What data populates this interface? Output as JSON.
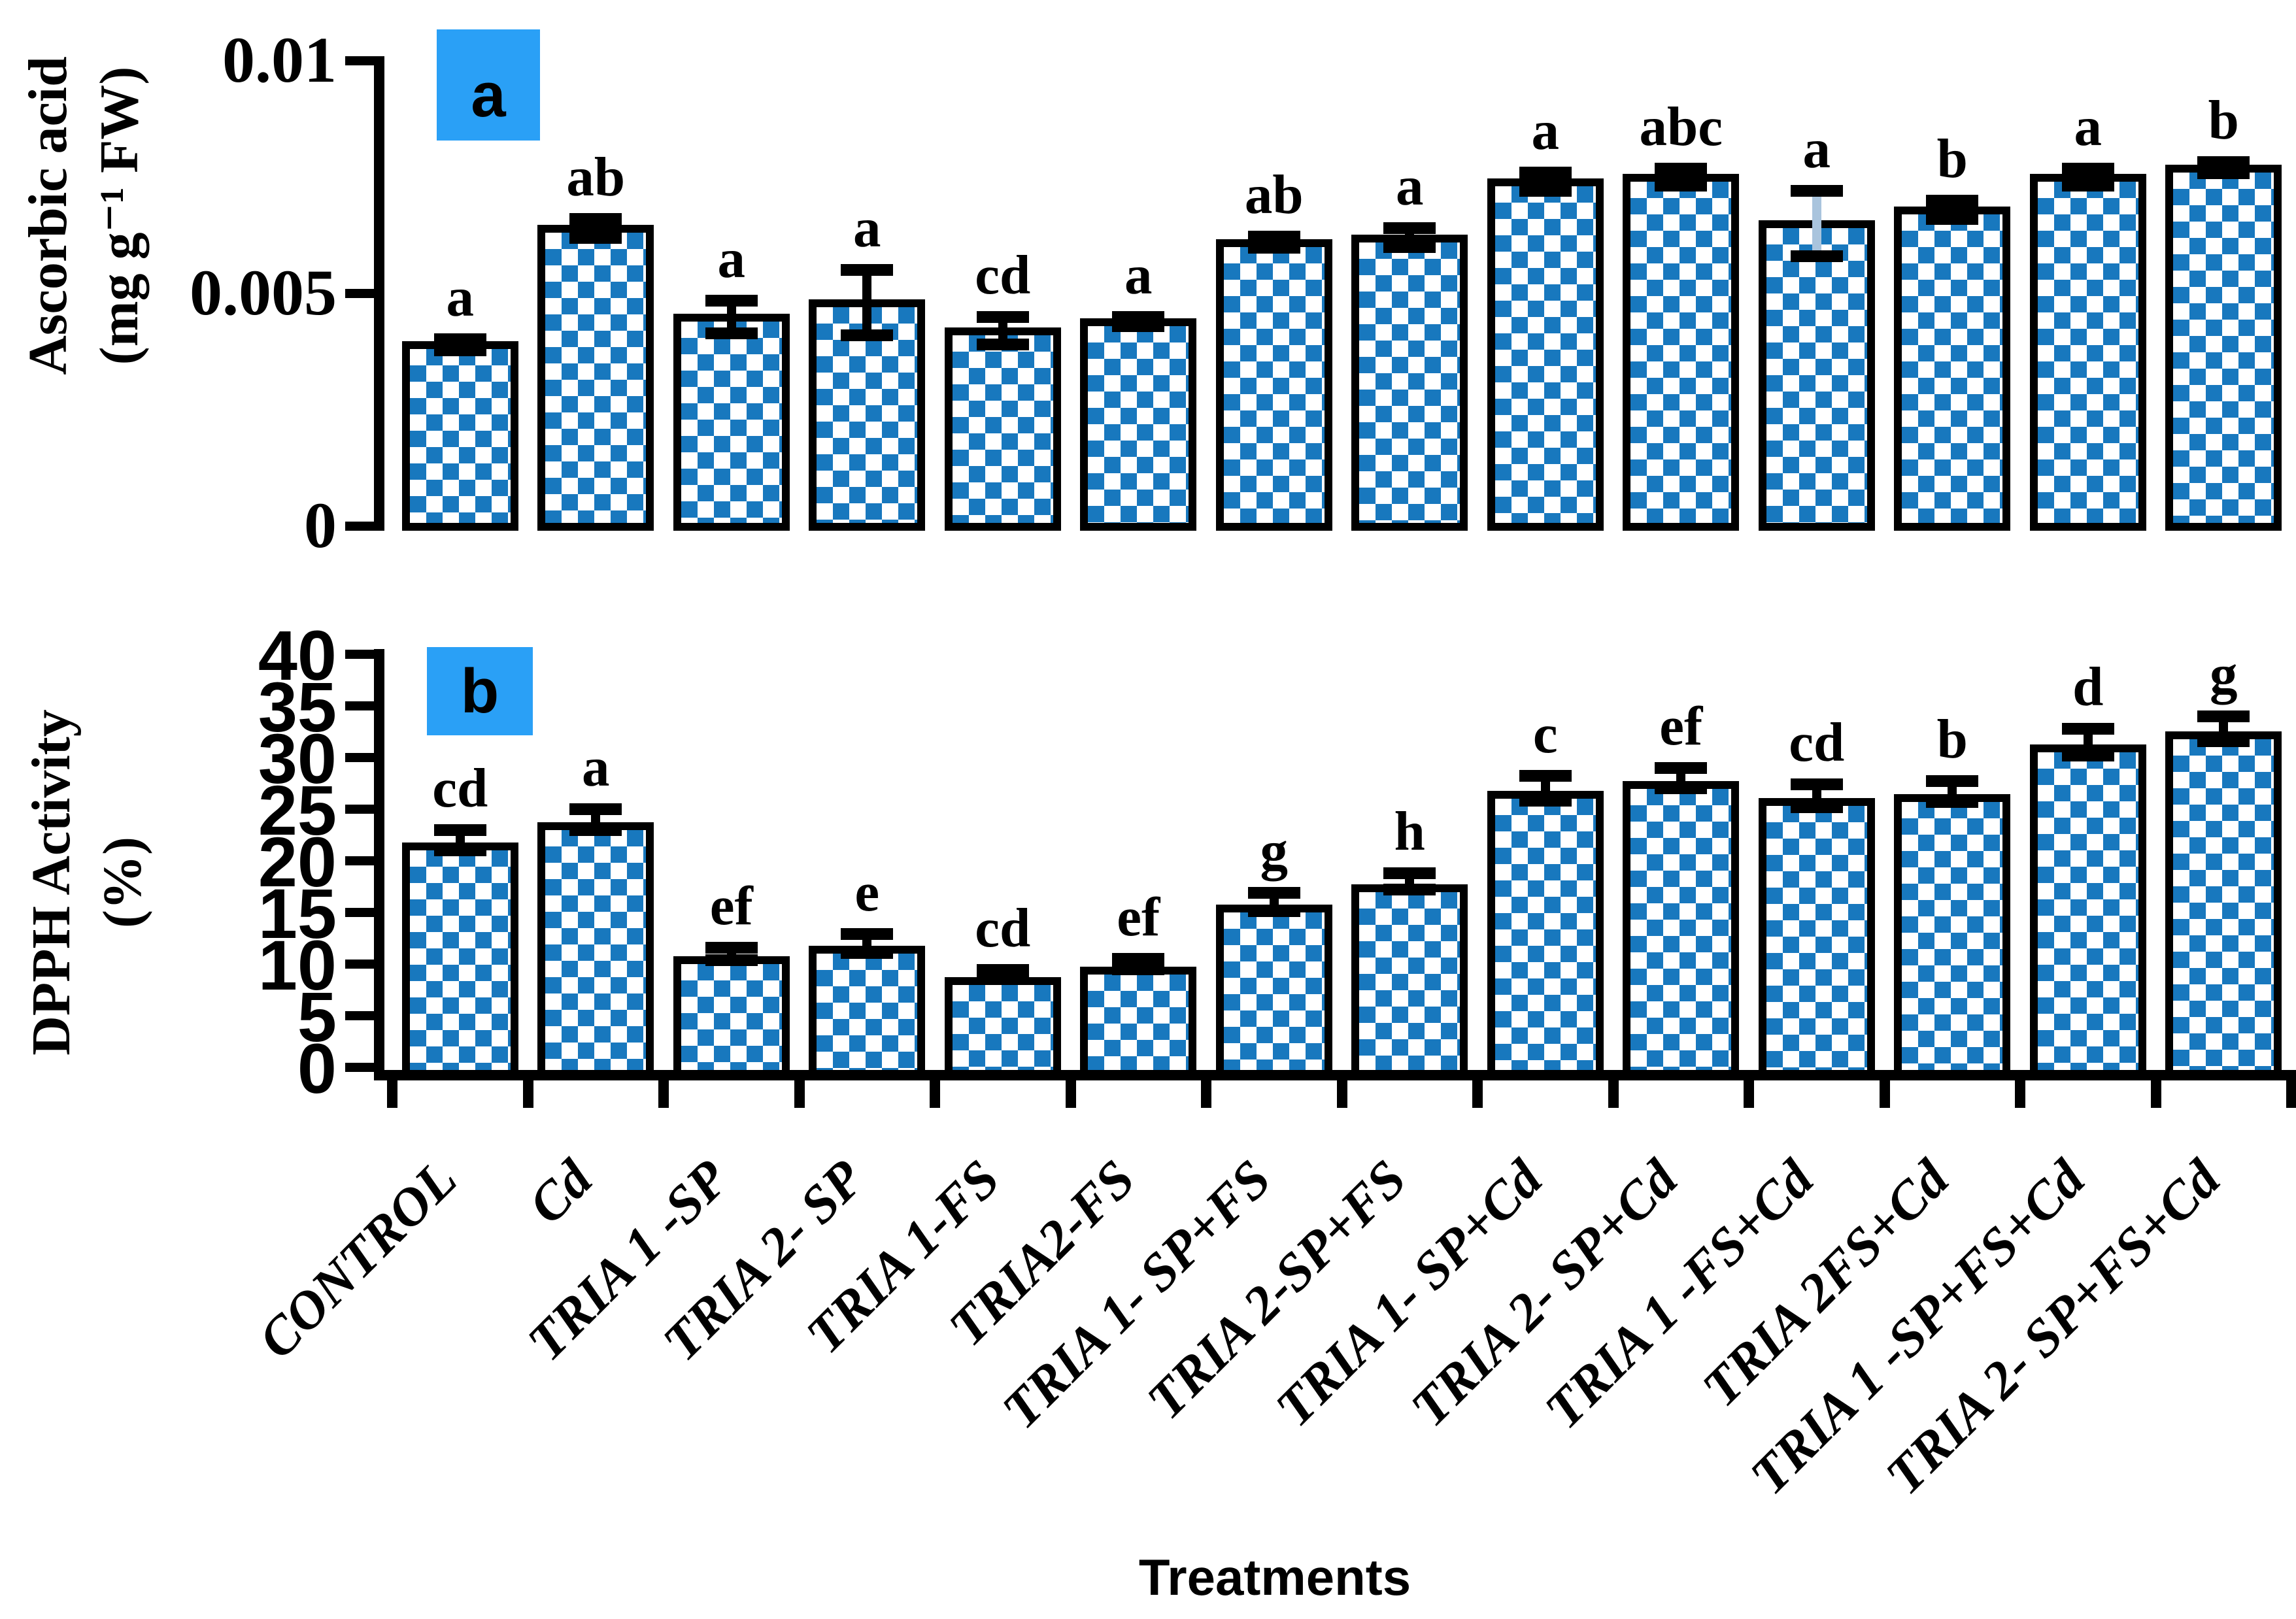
{
  "figure": {
    "xlabel": "Treatments",
    "colors": {
      "bar_fill_blue": "#1878be",
      "bar_border_black": "#000000",
      "legend_box_blue": "#2aa0f6",
      "light_error_line": "#a9c4dd"
    }
  },
  "chart_data": [
    {
      "type": "bar",
      "panel": "a",
      "title": "",
      "ylabel": "Ascorbic acid (mg g⁻¹ FW)",
      "ylabel_lines": [
        "Ascorbic acid",
        "(mg g⁻¹ FW)"
      ],
      "xlabel": "Treatments",
      "ylim": [
        0,
        0.01
      ],
      "yticks": [
        0,
        0.005,
        0.01
      ],
      "ytick_labels": [
        "0",
        "0.005",
        "0.01"
      ],
      "grid": false,
      "legend_position": "top-left-inside",
      "categories": [
        "CONTROL",
        "Cd",
        "TRIA 1 -SP",
        "TRIA 2- SP",
        "TRIA 1-FS",
        "TRIA2-FS",
        "TRIA 1- SP+FS",
        "TRIA 2-SP+FS",
        "TRIA 1- SP+Cd",
        "TRIA 2- SP+Cd",
        "TRIA 1 -FS+Cd",
        "TRIA 2FS+Cd",
        "TRIA 1 -SP+FS+Cd",
        "TRIA 2- SP+FS+Cd"
      ],
      "values": [
        0.0039,
        0.0064,
        0.0045,
        0.0048,
        0.0042,
        0.0044,
        0.0061,
        0.0062,
        0.0074,
        0.0075,
        0.0065,
        0.0068,
        0.0075,
        0.0077
      ],
      "errors": [
        0.00012,
        0.0002,
        0.00035,
        0.0007,
        0.0003,
        0.0001,
        0.00012,
        0.0002,
        0.0002,
        0.00018,
        0.0007,
        0.0002,
        0.00018,
        0.00012
      ],
      "sig_letters": [
        "a",
        "ab",
        "a",
        "a",
        "cd",
        "a",
        "ab",
        "a",
        "a",
        "abc",
        "a",
        "b",
        "a",
        "b"
      ],
      "light_error_bar_index": 10
    },
    {
      "type": "bar",
      "panel": "b",
      "title": "",
      "ylabel": "DPPH Activity (%)",
      "ylabel_lines": [
        "DPPH Activity",
        "(%)"
      ],
      "xlabel": "Treatments",
      "ylim": [
        0,
        40
      ],
      "yticks": [
        0,
        5,
        10,
        15,
        20,
        25,
        30,
        35,
        40
      ],
      "ytick_labels": [
        "0",
        "5",
        "10",
        "15",
        "20",
        "25",
        "30",
        "35",
        "40"
      ],
      "grid": false,
      "legend_position": "top-left-inside",
      "categories": [
        "CONTROL",
        "Cd",
        "TRIA 1 -SP",
        "TRIA 2- SP",
        "TRIA 1-FS",
        "TRIA2-FS",
        "TRIA 1- SP+FS",
        "TRIA 2-SP+FS",
        "TRIA 1- SP+Cd",
        "TRIA 2- SP+Cd",
        "TRIA 1 -FS+Cd",
        "TRIA 2FS+Cd",
        "TRIA 1 -SP+FS+Cd",
        "TRIA 2- SP+FS+Cd"
      ],
      "values": [
        22,
        24,
        11,
        12,
        9,
        10,
        16,
        18,
        27,
        28,
        26.3,
        26.7,
        31.5,
        32.8
      ],
      "errors": [
        1,
        1,
        0.6,
        0.9,
        0.4,
        0.5,
        0.9,
        0.8,
        1.2,
        1,
        1.1,
        1,
        1.3,
        1.2
      ],
      "sig_letters": [
        "cd",
        "a",
        "ef",
        "e",
        "cd",
        "ef",
        "g",
        "h",
        "c",
        "ef",
        "cd",
        "b",
        "d",
        "g"
      ]
    }
  ]
}
